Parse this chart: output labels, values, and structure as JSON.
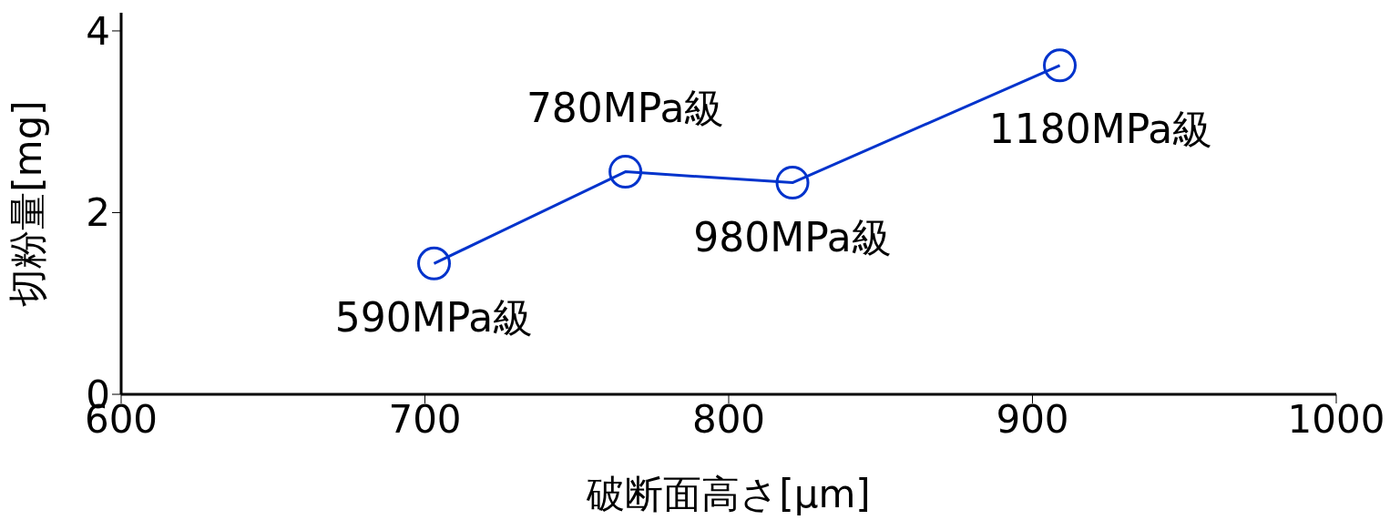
{
  "chart_data": {
    "type": "line",
    "xlabel": "破断面高さ[μm]",
    "ylabel": "切粉量[mg]",
    "x": [
      703,
      766,
      821,
      909
    ],
    "series": [
      {
        "color": "#0033cc",
        "values": [
          1.44,
          2.45,
          2.33,
          3.62
        ]
      }
    ],
    "xlim": [
      600,
      1000
    ],
    "xticks": [
      600,
      700,
      800,
      900,
      1000
    ],
    "ylim": [
      0,
      4.2
    ],
    "yticks": [
      0,
      2,
      4
    ],
    "marker": "circle",
    "grid": false,
    "annotations": [
      {
        "text": "590MPa級",
        "x": 703,
        "y": 1.44
      },
      {
        "text": "780MPa級",
        "x": 766,
        "y": 2.45
      },
      {
        "text": "980MPa級",
        "x": 821,
        "y": 2.33
      },
      {
        "text": "1180MPa級",
        "x": 909,
        "y": 3.62
      }
    ]
  }
}
